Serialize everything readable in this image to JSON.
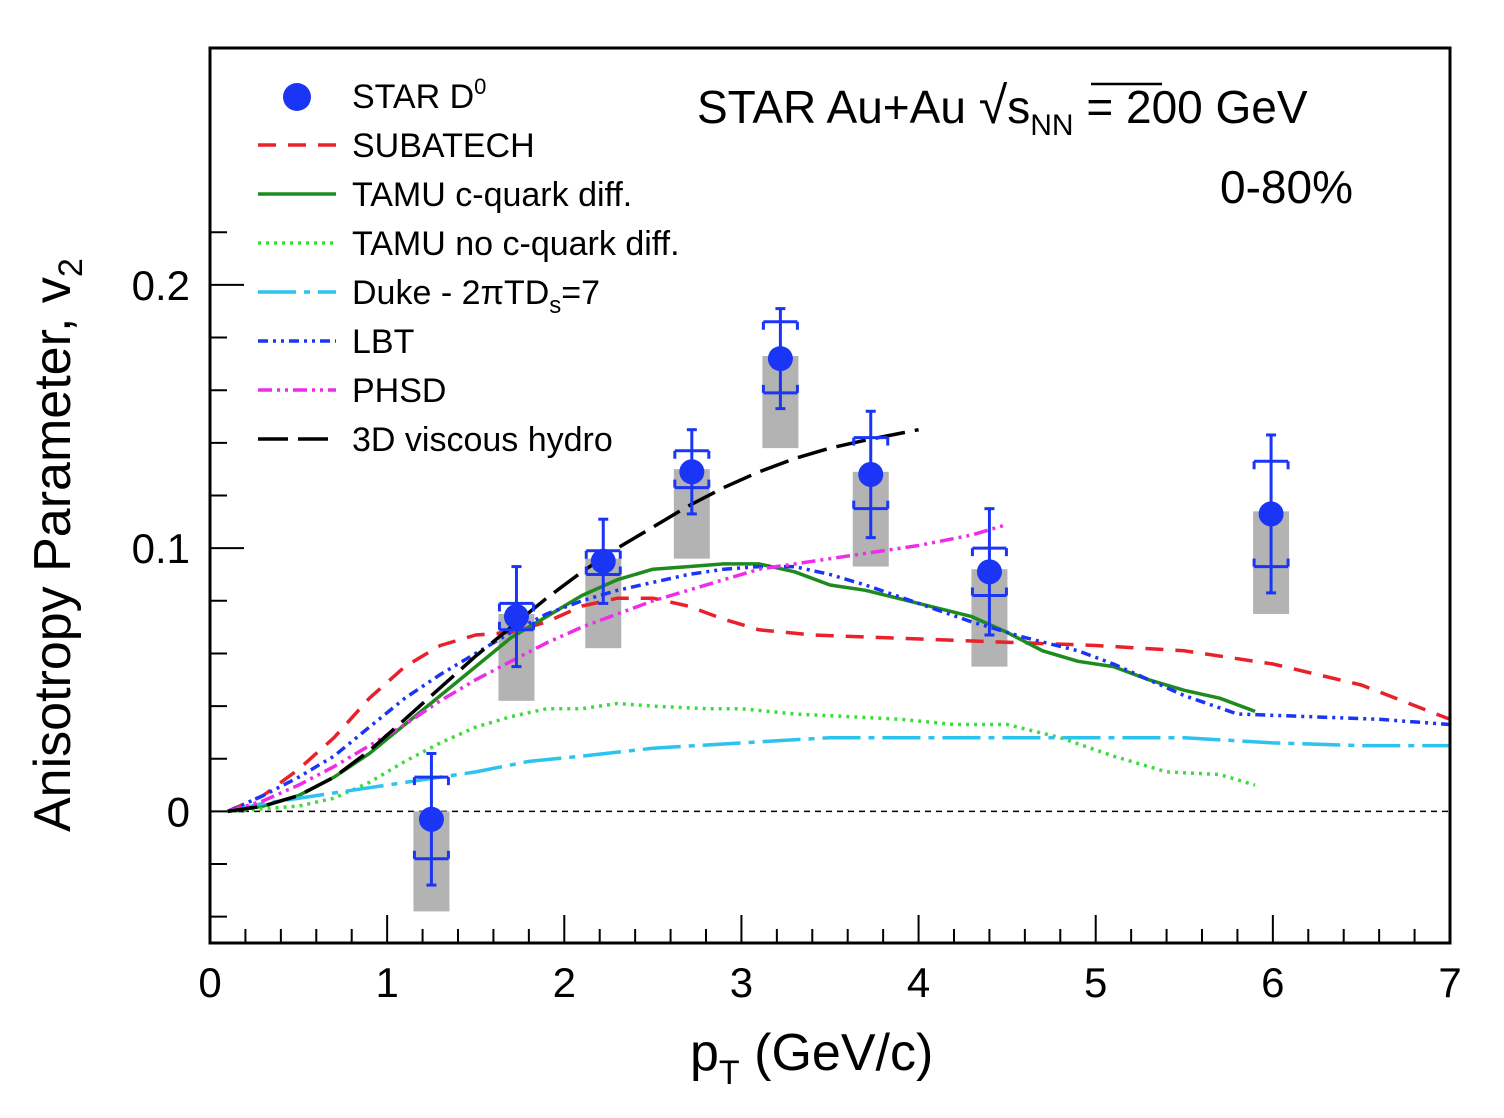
{
  "chart_data": {
    "type": "scatter",
    "xlabel": {
      "base": "p",
      "sub": "T",
      "rest": " (GeV/c)"
    },
    "ylabel": {
      "base": "Anisotropy Parameter, v",
      "sub": "2"
    },
    "xlim": [
      0,
      7
    ],
    "ylim": [
      -0.05,
      0.29
    ],
    "x_ticks": [
      "0",
      "1",
      "2",
      "3",
      "4",
      "5",
      "6",
      "7"
    ],
    "y_ticks": [
      "0",
      "0.1",
      "0.2"
    ],
    "annotation": {
      "line1_pre": "STAR Au+Au ",
      "line1_sqrt": "√",
      "line1_s": "s",
      "line1_sub": "NN",
      "line1_post": " = 200 GeV",
      "line2": "0-80%"
    },
    "zero_line": true,
    "data_points": {
      "name": "STAR D",
      "name_sup": "0",
      "color": "#1a35f5",
      "points": [
        {
          "x": 1.25,
          "y": -0.003,
          "stat": 0.025,
          "sys_lo": 0.035,
          "sys_hi": 0.003,
          "cap_lo": -0.018,
          "cap_hi": 0.013
        },
        {
          "x": 1.73,
          "y": 0.074,
          "stat": 0.019,
          "sys_lo": 0.032,
          "sys_hi": 0.001,
          "cap_lo": 0.069,
          "cap_hi": 0.079
        },
        {
          "x": 2.22,
          "y": 0.095,
          "stat": 0.016,
          "sys_lo": 0.033,
          "sys_hi": 0.001,
          "cap_lo": 0.09,
          "cap_hi": 0.099
        },
        {
          "x": 2.72,
          "y": 0.129,
          "stat": 0.016,
          "sys_lo": 0.033,
          "sys_hi": 0.001,
          "cap_lo": 0.123,
          "cap_hi": 0.137
        },
        {
          "x": 3.22,
          "y": 0.172,
          "stat": 0.019,
          "sys_lo": 0.034,
          "sys_hi": 0.001,
          "cap_lo": 0.159,
          "cap_hi": 0.186
        },
        {
          "x": 3.73,
          "y": 0.128,
          "stat": 0.024,
          "sys_lo": 0.035,
          "sys_hi": 0.001,
          "cap_lo": 0.115,
          "cap_hi": 0.142
        },
        {
          "x": 4.4,
          "y": 0.091,
          "stat": 0.024,
          "sys_lo": 0.036,
          "sys_hi": 0.001,
          "cap_lo": 0.082,
          "cap_hi": 0.1
        },
        {
          "x": 5.99,
          "y": 0.113,
          "stat": 0.03,
          "sys_lo": 0.038,
          "sys_hi": 0.001,
          "cap_lo": 0.093,
          "cap_hi": 0.133
        }
      ]
    },
    "series": [
      {
        "name": "SUBATECH",
        "color": "#e8212a",
        "dash": "18,12",
        "width": 3.5,
        "points": [
          [
            0.1,
            0
          ],
          [
            0.3,
            0.006
          ],
          [
            0.5,
            0.016
          ],
          [
            0.7,
            0.028
          ],
          [
            0.9,
            0.043
          ],
          [
            1.1,
            0.055
          ],
          [
            1.3,
            0.063
          ],
          [
            1.5,
            0.067
          ],
          [
            1.7,
            0.068
          ],
          [
            1.9,
            0.072
          ],
          [
            2.1,
            0.078
          ],
          [
            2.3,
            0.081
          ],
          [
            2.5,
            0.081
          ],
          [
            2.7,
            0.078
          ],
          [
            2.9,
            0.073
          ],
          [
            3.1,
            0.069
          ],
          [
            3.4,
            0.067
          ],
          [
            3.8,
            0.066
          ],
          [
            4.2,
            0.065
          ],
          [
            4.6,
            0.064
          ],
          [
            5.0,
            0.063
          ],
          [
            5.5,
            0.061
          ],
          [
            6.0,
            0.056
          ],
          [
            6.5,
            0.048
          ],
          [
            7.0,
            0.035
          ]
        ]
      },
      {
        "name": "TAMU c-quark diff.",
        "color": "#1f8b1f",
        "dash": "",
        "width": 3.5,
        "points": [
          [
            0.1,
            0
          ],
          [
            0.3,
            0.002
          ],
          [
            0.5,
            0.006
          ],
          [
            0.7,
            0.013
          ],
          [
            0.9,
            0.022
          ],
          [
            1.1,
            0.033
          ],
          [
            1.3,
            0.044
          ],
          [
            1.5,
            0.055
          ],
          [
            1.7,
            0.066
          ],
          [
            1.9,
            0.074
          ],
          [
            2.1,
            0.082
          ],
          [
            2.3,
            0.088
          ],
          [
            2.5,
            0.092
          ],
          [
            2.7,
            0.093
          ],
          [
            2.9,
            0.094
          ],
          [
            3.1,
            0.094
          ],
          [
            3.3,
            0.091
          ],
          [
            3.5,
            0.086
          ],
          [
            3.7,
            0.084
          ],
          [
            4.0,
            0.079
          ],
          [
            4.3,
            0.074
          ],
          [
            4.5,
            0.068
          ],
          [
            4.7,
            0.061
          ],
          [
            4.9,
            0.057
          ],
          [
            5.1,
            0.055
          ],
          [
            5.3,
            0.05
          ],
          [
            5.5,
            0.046
          ],
          [
            5.7,
            0.043
          ],
          [
            5.9,
            0.038
          ]
        ]
      },
      {
        "name": "TAMU no c-quark diff.",
        "color": "#3cdc3c",
        "dash": "3,5",
        "width": 3.5,
        "points": [
          [
            0.1,
            0
          ],
          [
            0.5,
            0.002
          ],
          [
            0.7,
            0.005
          ],
          [
            0.9,
            0.011
          ],
          [
            1.1,
            0.019
          ],
          [
            1.3,
            0.026
          ],
          [
            1.5,
            0.032
          ],
          [
            1.7,
            0.036
          ],
          [
            1.9,
            0.039
          ],
          [
            2.1,
            0.039
          ],
          [
            2.3,
            0.041
          ],
          [
            2.5,
            0.04
          ],
          [
            2.8,
            0.039
          ],
          [
            3.0,
            0.039
          ],
          [
            3.3,
            0.037
          ],
          [
            3.6,
            0.036
          ],
          [
            3.9,
            0.035
          ],
          [
            4.2,
            0.033
          ],
          [
            4.5,
            0.033
          ],
          [
            4.8,
            0.028
          ],
          [
            5.1,
            0.021
          ],
          [
            5.4,
            0.015
          ],
          [
            5.7,
            0.014
          ],
          [
            5.9,
            0.01
          ]
        ]
      },
      {
        "name": "Duke - 2πTD",
        "name_sub": "s",
        "name_rest": "=7",
        "color": "#2cc3ef",
        "dash": "38,8,6,8",
        "width": 3.5,
        "points": [
          [
            0.1,
            0
          ],
          [
            0.3,
            0.003
          ],
          [
            0.6,
            0.006
          ],
          [
            0.9,
            0.009
          ],
          [
            1.2,
            0.012
          ],
          [
            1.5,
            0.015
          ],
          [
            1.8,
            0.019
          ],
          [
            2.1,
            0.021
          ],
          [
            2.5,
            0.024
          ],
          [
            3.0,
            0.026
          ],
          [
            3.5,
            0.028
          ],
          [
            4.0,
            0.028
          ],
          [
            4.5,
            0.028
          ],
          [
            5.0,
            0.028
          ],
          [
            5.5,
            0.028
          ],
          [
            6.0,
            0.026
          ],
          [
            6.5,
            0.025
          ],
          [
            7.0,
            0.025
          ]
        ]
      },
      {
        "name": "LBT",
        "color": "#1a35f5",
        "dash": "10,5,3,5,3,5",
        "width": 3.5,
        "points": [
          [
            0.1,
            0
          ],
          [
            0.3,
            0.006
          ],
          [
            0.5,
            0.013
          ],
          [
            0.7,
            0.021
          ],
          [
            0.9,
            0.032
          ],
          [
            1.1,
            0.043
          ],
          [
            1.3,
            0.052
          ],
          [
            1.5,
            0.06
          ],
          [
            1.7,
            0.068
          ],
          [
            1.9,
            0.075
          ],
          [
            2.1,
            0.08
          ],
          [
            2.3,
            0.084
          ],
          [
            2.5,
            0.087
          ],
          [
            2.7,
            0.09
          ],
          [
            2.9,
            0.092
          ],
          [
            3.1,
            0.093
          ],
          [
            3.3,
            0.093
          ],
          [
            3.5,
            0.09
          ],
          [
            3.7,
            0.086
          ],
          [
            4.0,
            0.079
          ],
          [
            4.3,
            0.072
          ],
          [
            4.6,
            0.066
          ],
          [
            4.9,
            0.061
          ],
          [
            5.1,
            0.056
          ],
          [
            5.3,
            0.05
          ],
          [
            5.5,
            0.044
          ],
          [
            5.8,
            0.037
          ],
          [
            6.2,
            0.036
          ],
          [
            6.6,
            0.035
          ],
          [
            7.0,
            0.033
          ]
        ]
      },
      {
        "name": "PHSD",
        "color": "#ef2ce8",
        "dash": "14,5,3,5,3,5",
        "width": 3.5,
        "points": [
          [
            0.1,
            0
          ],
          [
            0.3,
            0.004
          ],
          [
            0.5,
            0.01
          ],
          [
            0.7,
            0.017
          ],
          [
            0.9,
            0.025
          ],
          [
            1.1,
            0.033
          ],
          [
            1.3,
            0.042
          ],
          [
            1.5,
            0.05
          ],
          [
            1.7,
            0.057
          ],
          [
            1.9,
            0.064
          ],
          [
            2.1,
            0.07
          ],
          [
            2.3,
            0.075
          ],
          [
            2.5,
            0.08
          ],
          [
            2.7,
            0.084
          ],
          [
            2.9,
            0.088
          ],
          [
            3.1,
            0.092
          ],
          [
            3.4,
            0.095
          ],
          [
            3.7,
            0.098
          ],
          [
            4.0,
            0.101
          ],
          [
            4.3,
            0.105
          ],
          [
            4.5,
            0.109
          ]
        ]
      },
      {
        "name": "3D viscous hydro",
        "color": "#000000",
        "dash": "30,10",
        "width": 3.5,
        "points": [
          [
            0.1,
            0
          ],
          [
            0.3,
            0.002
          ],
          [
            0.5,
            0.006
          ],
          [
            0.7,
            0.013
          ],
          [
            0.9,
            0.023
          ],
          [
            1.1,
            0.035
          ],
          [
            1.3,
            0.047
          ],
          [
            1.5,
            0.059
          ],
          [
            1.7,
            0.07
          ],
          [
            1.9,
            0.081
          ],
          [
            2.1,
            0.091
          ],
          [
            2.3,
            0.1
          ],
          [
            2.5,
            0.108
          ],
          [
            2.7,
            0.116
          ],
          [
            2.9,
            0.123
          ],
          [
            3.1,
            0.129
          ],
          [
            3.3,
            0.134
          ],
          [
            3.5,
            0.138
          ],
          [
            3.7,
            0.141
          ],
          [
            4.0,
            0.145
          ]
        ]
      }
    ]
  }
}
